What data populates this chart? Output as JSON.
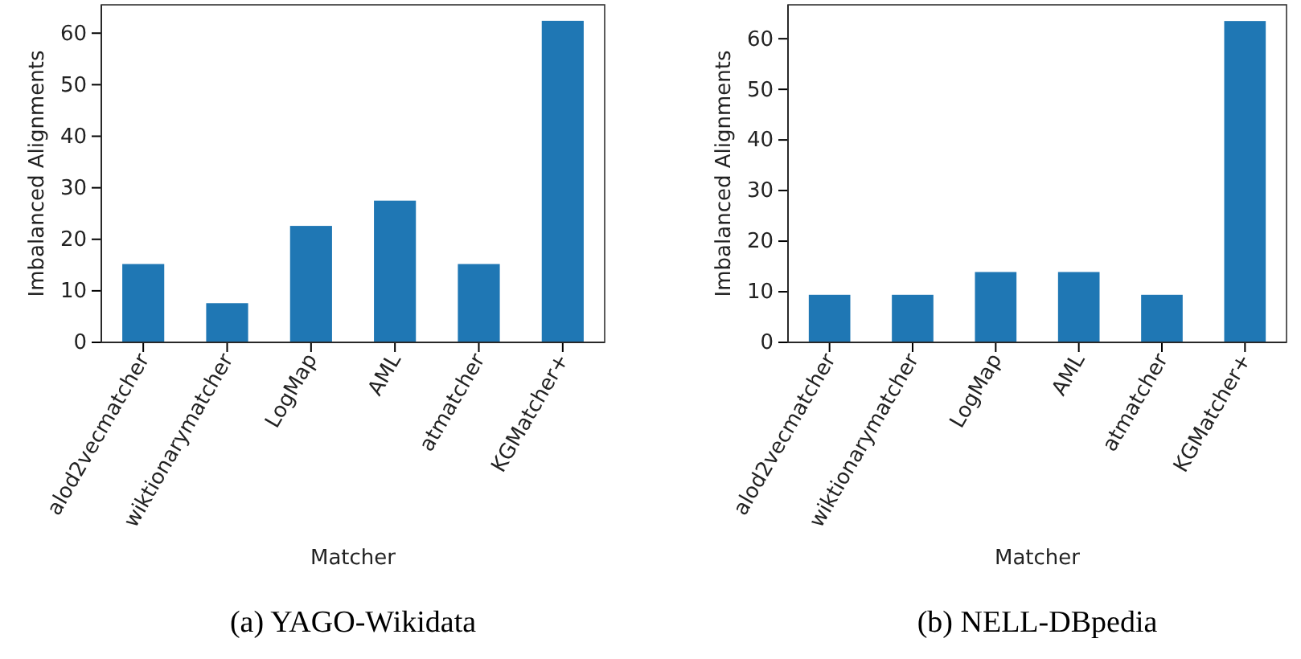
{
  "chart_data": [
    {
      "type": "bar",
      "title": "(a) YAGO-Wikidata",
      "xlabel": "Matcher",
      "ylabel": "Imbalanced Alignments",
      "categories": [
        "alod2vecmatcher",
        "wiktionarymatcher",
        "LogMap",
        "AML",
        "atmatcher",
        "KGMatcher+"
      ],
      "values": [
        15.2,
        7.6,
        22.6,
        27.5,
        15.2,
        62.4
      ],
      "color": "#1f77b4",
      "ylim": [
        0,
        65.5
      ],
      "yticks": [
        0,
        10,
        20,
        30,
        40,
        50,
        60
      ]
    },
    {
      "type": "bar",
      "title": "(b) NELL-DBpedia",
      "xlabel": "Matcher",
      "ylabel": "Imbalanced Alignments",
      "categories": [
        "alod2vecmatcher",
        "wiktionarymatcher",
        "LogMap",
        "AML",
        "atmatcher",
        "KGMatcher+"
      ],
      "values": [
        9.4,
        9.4,
        13.9,
        13.9,
        9.4,
        63.5
      ],
      "color": "#1f77b4",
      "ylim": [
        0,
        66.7
      ],
      "yticks": [
        0,
        10,
        20,
        30,
        40,
        50,
        60
      ]
    }
  ]
}
